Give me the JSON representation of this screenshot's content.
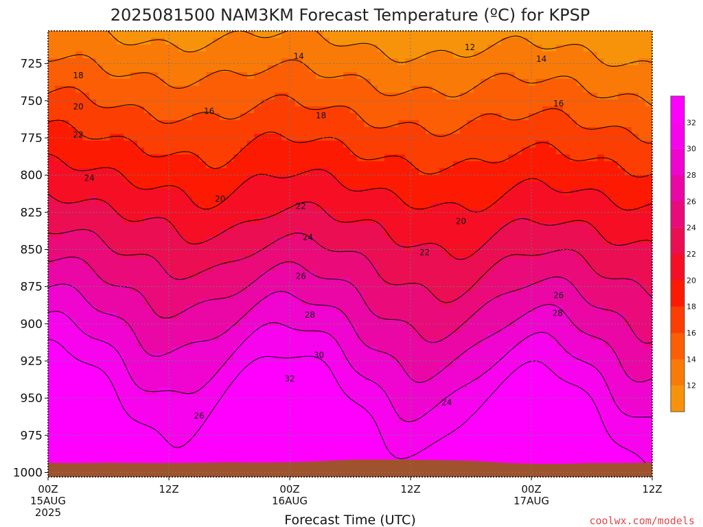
{
  "chart_data": {
    "type": "heatmap",
    "title": "2025081500 NAM3KM Forecast Temperature (ºC) for KPSP",
    "xlabel": "Forecast Time (UTC)",
    "ylabel": "",
    "credit": "coolwx.com/models",
    "x_range_hours": [
      0,
      60
    ],
    "y_range_hpa": [
      703,
      1003
    ],
    "y_ticks": [
      725,
      750,
      775,
      800,
      825,
      850,
      875,
      900,
      925,
      950,
      975,
      1000
    ],
    "x_ticks": [
      {
        "hour": 0,
        "lines": [
          "00Z",
          "15AUG",
          "2025"
        ]
      },
      {
        "hour": 12,
        "lines": [
          "12Z"
        ]
      },
      {
        "hour": 24,
        "lines": [
          "00Z",
          "16AUG"
        ]
      },
      {
        "hour": 36,
        "lines": [
          "12Z"
        ]
      },
      {
        "hour": 48,
        "lines": [
          "00Z",
          "17AUG"
        ]
      },
      {
        "hour": 60,
        "lines": [
          "12Z"
        ]
      }
    ],
    "grid": true,
    "colorbar_ticks": [
      12,
      14,
      16,
      18,
      20,
      22,
      24,
      26,
      28,
      30,
      32
    ],
    "colors": [
      "#f7930a",
      "#fa7a07",
      "#fb5e05",
      "#fc3e03",
      "#fd1a02",
      "#f60e25",
      "#ec0e52",
      "#ea0a7a",
      "#ea07a6",
      "#ef05cf",
      "#f803ee",
      "#ff00ff"
    ],
    "ground_color": "#a0522d",
    "contour_levels": [
      12,
      14,
      16,
      18,
      20,
      22,
      24,
      26,
      28,
      30,
      32
    ],
    "contour_labels": [
      {
        "value": "12",
        "hour": 41.9,
        "p": 714
      },
      {
        "value": "14",
        "hour": 24.9,
        "p": 720
      },
      {
        "value": "14",
        "hour": 49.0,
        "p": 722
      },
      {
        "value": "16",
        "hour": 16.0,
        "p": 757
      },
      {
        "value": "16",
        "hour": 50.7,
        "p": 752
      },
      {
        "value": "18",
        "hour": 3.0,
        "p": 733
      },
      {
        "value": "18",
        "hour": 27.1,
        "p": 760
      },
      {
        "value": "20",
        "hour": 3.0,
        "p": 754
      },
      {
        "value": "20",
        "hour": 17.1,
        "p": 816
      },
      {
        "value": "20",
        "hour": 41.0,
        "p": 831
      },
      {
        "value": "22",
        "hour": 3.0,
        "p": 773
      },
      {
        "value": "22",
        "hour": 25.1,
        "p": 821
      },
      {
        "value": "22",
        "hour": 37.4,
        "p": 852
      },
      {
        "value": "24",
        "hour": 4.1,
        "p": 802
      },
      {
        "value": "24",
        "hour": 25.8,
        "p": 842
      },
      {
        "value": "24",
        "hour": 39.6,
        "p": 953
      },
      {
        "value": "26",
        "hour": 25.1,
        "p": 868
      },
      {
        "value": "26",
        "hour": 50.7,
        "p": 881
      },
      {
        "value": "26",
        "hour": 15.0,
        "p": 962
      },
      {
        "value": "28",
        "hour": 26.0,
        "p": 894
      },
      {
        "value": "28",
        "hour": 50.6,
        "p": 893
      },
      {
        "value": "30",
        "hour": 26.9,
        "p": 921
      },
      {
        "value": "32",
        "hour": 24.0,
        "p": 937
      }
    ]
  }
}
